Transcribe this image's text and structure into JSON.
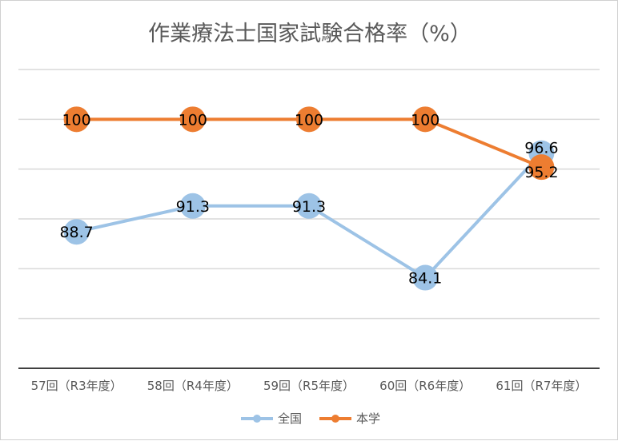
{
  "chart_data": {
    "type": "line",
    "title": "作業療法士国家試験合格率（%）",
    "categories": [
      "57回（R3年度）",
      "58回（R4年度）",
      "59回（R5年度）",
      "60回（R6年度）",
      "61回（R7年度）"
    ],
    "series": [
      {
        "name": "全国",
        "color": "#9DC3E6",
        "values": [
          88.7,
          91.3,
          91.3,
          84.1,
          96.6
        ]
      },
      {
        "name": "本学",
        "color": "#ED7D31",
        "values": [
          100,
          100,
          100,
          100,
          95.2
        ]
      }
    ],
    "ylim": [
      75,
      105
    ],
    "grid": true,
    "legend": "bottom",
    "data_labels": true
  }
}
